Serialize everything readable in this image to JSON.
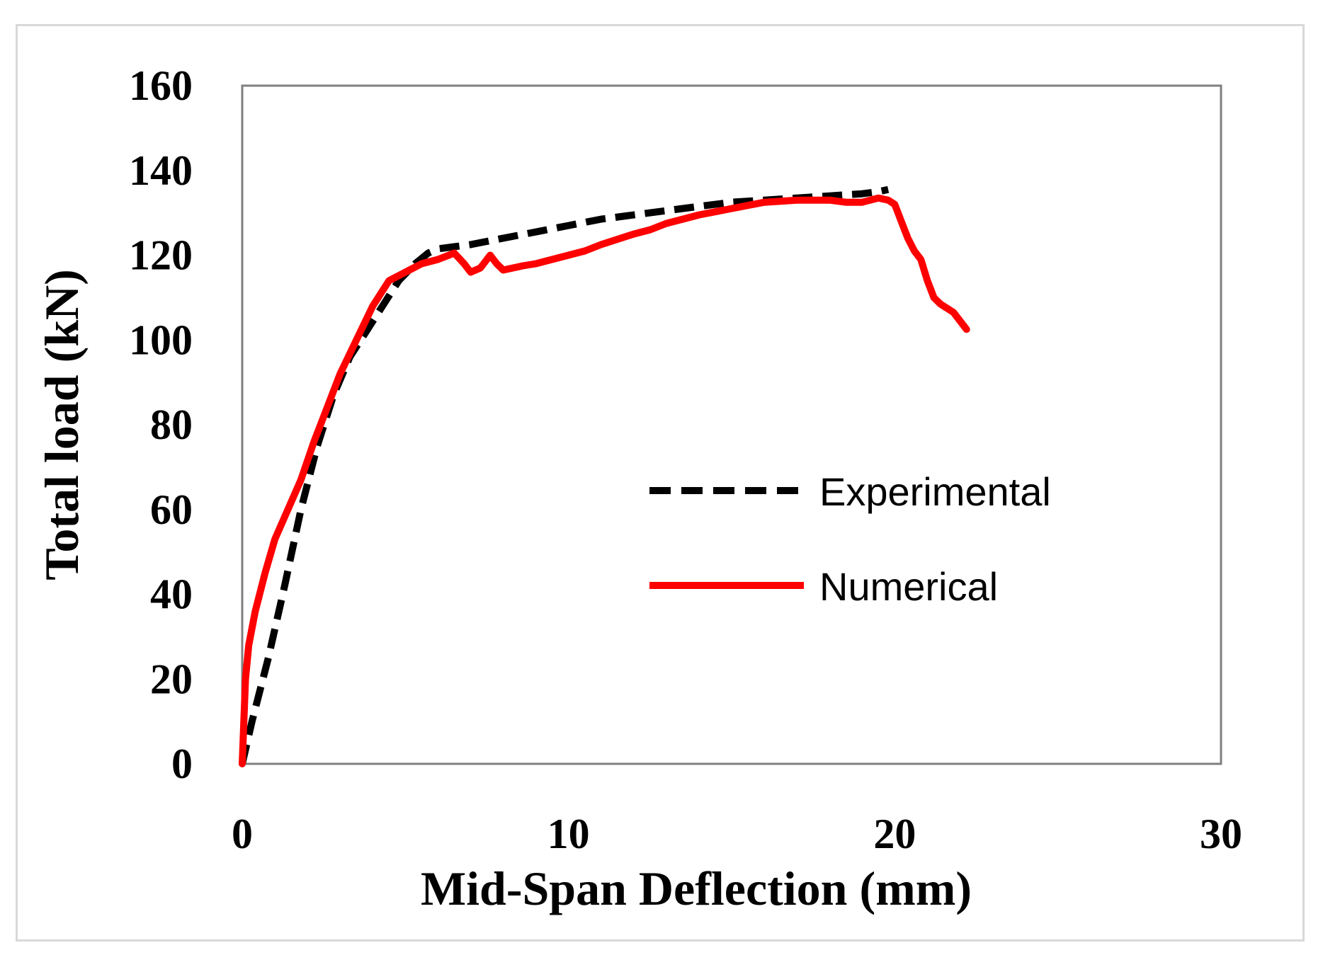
{
  "chart_data": {
    "type": "line",
    "title": "",
    "xlabel": "Mid-Span Deflection (mm)",
    "ylabel": "Total load (kN)",
    "xlim": [
      0,
      30
    ],
    "ylim": [
      0,
      160
    ],
    "xticks": [
      0,
      10,
      20,
      30
    ],
    "yticks": [
      0,
      20,
      40,
      60,
      80,
      100,
      120,
      140,
      160
    ],
    "grid": false,
    "legend": {
      "position": "center-right",
      "entries": [
        "Experimental",
        "Numerical"
      ]
    },
    "series": [
      {
        "name": "Experimental",
        "color": "#000000",
        "style": "dashed",
        "x": [
          0,
          0.3,
          0.8,
          1.3,
          1.8,
          2.3,
          2.8,
          3.3,
          3.8,
          4.3,
          4.8,
          5.3,
          5.7,
          6.0,
          6.5,
          7.0,
          8.0,
          9.0,
          10.0,
          11.0,
          12.0,
          13.0,
          14.0,
          15.0,
          16.0,
          17.0,
          18.0,
          19.0,
          19.5,
          19.8
        ],
        "y": [
          0,
          10,
          25,
          42,
          60,
          75,
          87,
          96,
          102,
          108,
          114,
          118,
          120.5,
          121.5,
          122,
          122.5,
          124,
          125.5,
          127,
          128.5,
          129.5,
          130.5,
          131.5,
          132.5,
          133,
          133.5,
          134,
          134.5,
          135,
          135.5
        ]
      },
      {
        "name": "Numerical",
        "color": "#ff0000",
        "style": "solid",
        "x": [
          0,
          0.1,
          0.2,
          0.4,
          0.7,
          1.0,
          1.4,
          1.8,
          2.2,
          2.6,
          3.0,
          3.5,
          4.0,
          4.5,
          5.0,
          5.5,
          6.0,
          6.5,
          6.8,
          7.0,
          7.3,
          7.6,
          7.8,
          8.0,
          8.3,
          8.6,
          9.0,
          9.5,
          10.0,
          10.5,
          11.0,
          12.0,
          12.5,
          13.0,
          14.0,
          15.0,
          16.0,
          17.0,
          18.0,
          18.5,
          19.0,
          19.5,
          19.8,
          20.0,
          20.2,
          20.4,
          20.6,
          20.8,
          21.0,
          21.2,
          21.4,
          21.6,
          21.8,
          22.0,
          22.1,
          22.2
        ],
        "y": [
          0,
          20,
          28,
          36,
          45,
          53,
          60,
          67,
          76,
          84,
          92,
          100,
          108,
          114,
          116,
          118,
          119,
          120.5,
          118,
          116,
          117,
          120,
          118,
          116.5,
          117,
          117.5,
          118,
          119,
          120,
          121,
          122.5,
          125,
          126,
          127.5,
          129.5,
          131,
          132.5,
          133,
          133,
          132.5,
          132.5,
          133.5,
          133,
          132,
          128,
          124,
          121,
          119,
          114,
          110,
          108.5,
          107.5,
          106.5,
          104.5,
          103.5,
          102.5
        ]
      }
    ]
  }
}
